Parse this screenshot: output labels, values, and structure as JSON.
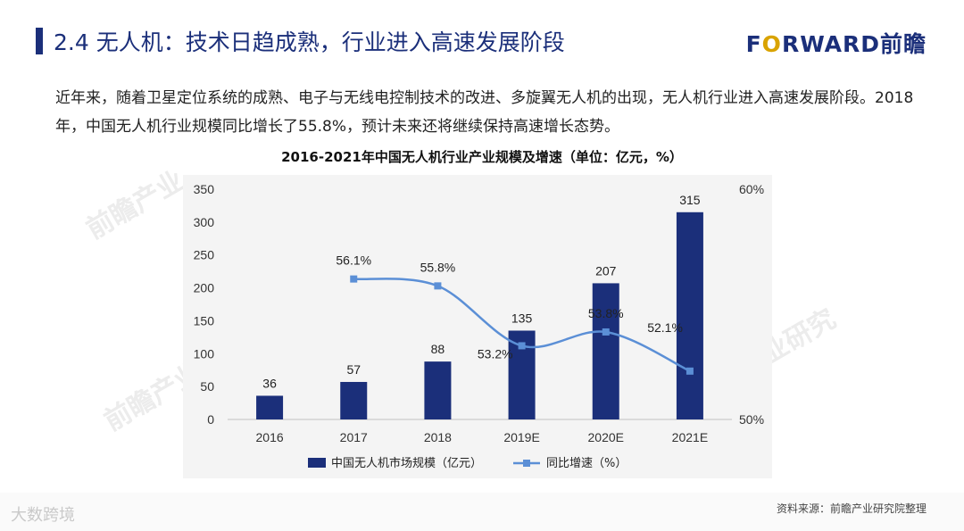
{
  "header": {
    "title": "2.4 无人机：技术日趋成熟，行业进入高速发展阶段",
    "brand_main": "F",
    "brand_o": "O",
    "brand_rest": "RWARD前瞻"
  },
  "intro": "近年来，随着卫星定位系统的成熟、电子与无线电控制技术的改进、多旋翼无人机的出现，无人机行业进入高速发展阶段。2018年，中国无人机行业规模同比增长了55.8%，预计未来还将继续保持高速增长态势。",
  "source": "资料来源：前瞻产业研究院整理",
  "watermark": "大数跨境",
  "chart_data": {
    "type": "bar+line",
    "title": "2016-2021年中国无人机行业产业规模及增速（单位：亿元，%）",
    "categories": [
      "2016",
      "2017",
      "2018",
      "2019E",
      "2020E",
      "2021E"
    ],
    "series": [
      {
        "name": "中国无人机市场规模（亿元）",
        "type": "bar",
        "axis": "left",
        "values": [
          36,
          57,
          88,
          135,
          207,
          315
        ],
        "labels": [
          "36",
          "57",
          "88",
          "135",
          "207",
          "315"
        ],
        "color": "#1b2f7a"
      },
      {
        "name": "同比增速（%）",
        "type": "line",
        "axis": "right",
        "values": [
          null,
          56.1,
          55.8,
          53.2,
          53.8,
          52.1
        ],
        "labels": [
          "",
          "56.1%",
          "55.8%",
          "53.2%",
          "53.8%",
          "52.1%"
        ],
        "color": "#5b8fd6"
      }
    ],
    "left_axis": {
      "min": 0,
      "max": 350,
      "ticks": [
        "0",
        "50",
        "100",
        "150",
        "200",
        "250",
        "300",
        "350"
      ]
    },
    "right_axis": {
      "min": 50,
      "max": 60,
      "ticks": [
        "50%",
        "60%"
      ]
    }
  }
}
